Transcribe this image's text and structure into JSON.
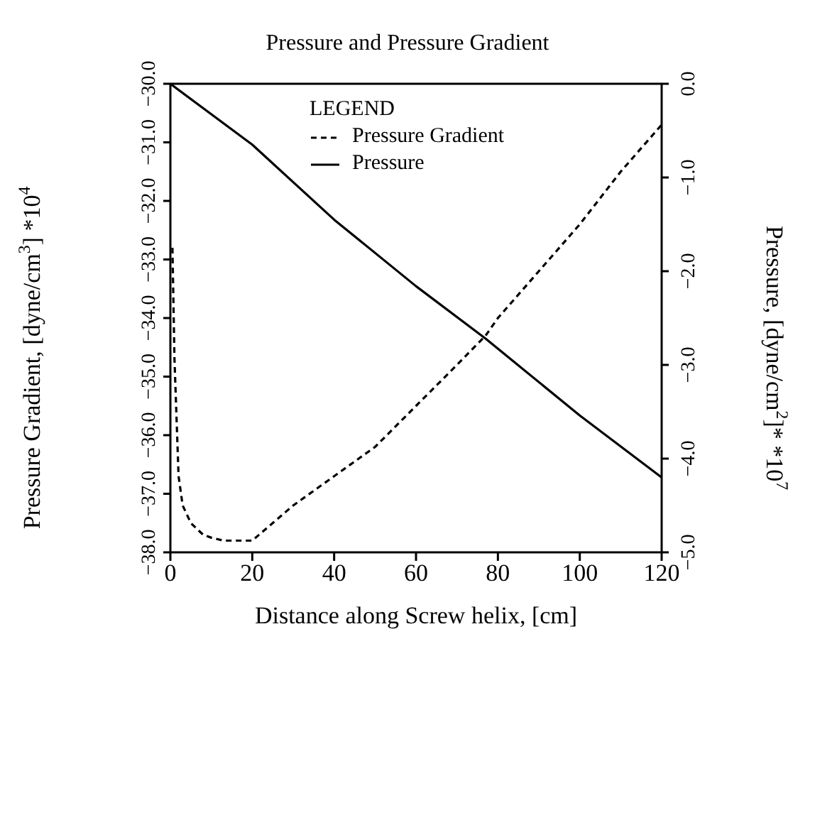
{
  "chart_data": {
    "type": "line",
    "title": "Pressure and Pressure Gradient",
    "xlabel": "Distance along Screw helix, [cm]",
    "ylabel": "Pressure Gradient, [dyne/cm$^{3}$] *10$^{4}$",
    "y2label": "Pressure, [dyne/cm$^{2}$]* *10$^{7}$",
    "legend_title": "LEGEND",
    "legend": "top right",
    "marker": "none",
    "xlim": [
      0,
      120
    ],
    "xticks": [
      0,
      20,
      40,
      60,
      80,
      100,
      120
    ],
    "ylim": [
      -38,
      -30
    ],
    "yticks": [
      {
        "value": -38,
        "label": "−38.0"
      },
      {
        "value": -37,
        "label": "−37.0"
      },
      {
        "value": -36,
        "label": "−36.0"
      },
      {
        "value": -35,
        "label": "−35.0"
      },
      {
        "value": -34,
        "label": "−34.0"
      },
      {
        "value": -33,
        "label": "−33.0"
      },
      {
        "value": -32,
        "label": "−32.0"
      },
      {
        "value": -31,
        "label": "−31.0"
      },
      {
        "value": -30,
        "label": "−30.0"
      }
    ],
    "y2lim": [
      -5,
      0
    ],
    "y2ticks": [
      {
        "value": -5,
        "label": "−5.0"
      },
      {
        "value": -4,
        "label": "−4.0"
      },
      {
        "value": -3,
        "label": "−3.0"
      },
      {
        "value": -2,
        "label": "−2.0"
      },
      {
        "value": -1,
        "label": "−1.0"
      },
      {
        "value": 0,
        "label": "0.0"
      }
    ],
    "series": [
      {
        "name": "Pressure Gradient",
        "color": "#000000",
        "line_style": "dashed",
        "x": [
          0.5,
          1,
          2,
          3,
          5,
          8,
          10,
          13,
          20,
          25,
          30,
          40,
          50,
          60,
          70,
          77,
          80,
          90,
          100,
          110,
          120
        ],
        "values": [
          -32.8,
          -34.7,
          -36.7,
          -37.2,
          -37.5,
          -37.7,
          -37.75,
          -37.8,
          -37.8,
          -37.5,
          -37.2,
          -36.7,
          -36.2,
          -35.5,
          -34.8,
          -34.3,
          -34.0,
          -33.2,
          -32.4,
          -31.5,
          -30.7
        ]
      },
      {
        "name": "Pressure",
        "color": "#000000",
        "line_style": "solid",
        "axis": "y2",
        "x": [
          0,
          20,
          40,
          60,
          77,
          100,
          120
        ],
        "values": [
          0,
          -0.65,
          -1.45,
          -2.16,
          -2.72,
          -3.54,
          -4.2
        ]
      }
    ]
  }
}
